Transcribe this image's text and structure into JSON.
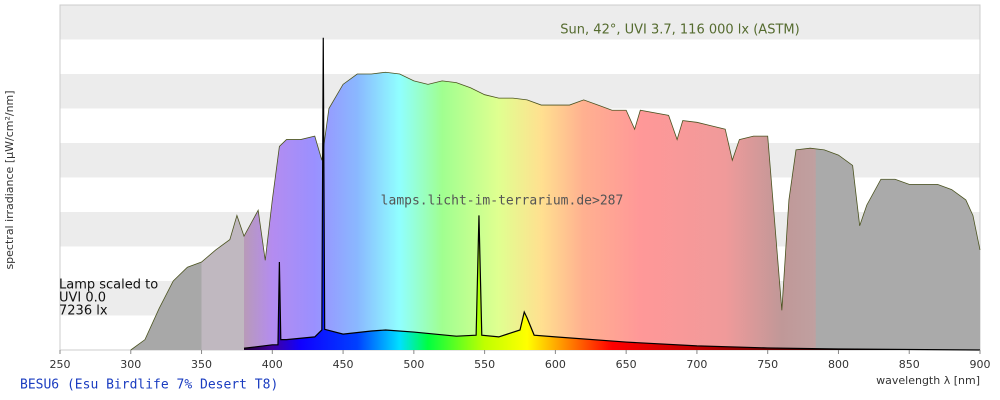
{
  "chart_data": {
    "type": "area",
    "title": "Sun, 42°, UVI 3.7, 116 000 lx (ASTM)",
    "watermark": "lamps.licht-im-terrarium.de>287",
    "annotation": [
      "Lamp scaled to",
      "UVI 0.0",
      "7236 lx"
    ],
    "y_label": "spectral irradiance [µW/cm²/nm]",
    "x_label": "wavelength λ [nm]",
    "caption": "BESU6 (Esu Birdlife 7% Desert T8)",
    "xlim": [
      250,
      900
    ],
    "ylim": [
      0,
      10
    ],
    "xticks": [
      250,
      300,
      350,
      400,
      450,
      500,
      550,
      600,
      650,
      700,
      750,
      800,
      850,
      900
    ],
    "series": [
      {
        "name": "Sun",
        "color": "#4b5320",
        "x": [
          300,
          310,
          320,
          330,
          340,
          350,
          360,
          370,
          375,
          380,
          390,
          395,
          400,
          405,
          410,
          420,
          430,
          435,
          440,
          450,
          460,
          470,
          480,
          490,
          500,
          510,
          520,
          530,
          540,
          550,
          560,
          570,
          580,
          590,
          600,
          610,
          620,
          630,
          640,
          650,
          656,
          660,
          680,
          686,
          690,
          700,
          710,
          720,
          725,
          730,
          740,
          750,
          760,
          765,
          770,
          780,
          790,
          800,
          810,
          815,
          820,
          830,
          840,
          850,
          860,
          870,
          880,
          890,
          895,
          900
        ],
        "values": [
          0,
          0.3,
          1.2,
          2.0,
          2.4,
          2.55,
          2.9,
          3.2,
          3.9,
          3.3,
          4.05,
          2.6,
          4.35,
          5.9,
          6.1,
          6.1,
          6.2,
          5.5,
          7.0,
          7.7,
          8.0,
          8.0,
          8.05,
          8.0,
          7.8,
          7.7,
          7.8,
          7.75,
          7.6,
          7.4,
          7.3,
          7.3,
          7.25,
          7.1,
          7.1,
          7.1,
          7.25,
          7.1,
          6.95,
          6.95,
          6.4,
          6.95,
          6.8,
          6.1,
          6.65,
          6.6,
          6.5,
          6.4,
          5.5,
          6.1,
          6.2,
          6.2,
          1.15,
          4.35,
          5.8,
          5.85,
          5.8,
          5.65,
          5.35,
          3.6,
          4.2,
          4.95,
          4.95,
          4.8,
          4.8,
          4.8,
          4.65,
          4.35,
          3.9,
          2.9
        ]
      },
      {
        "name": "Lamp",
        "color": "#000000",
        "x": [
          380,
          400,
          404,
          405,
          406,
          410,
          430,
          435,
          436,
          437,
          450,
          470,
          480,
          500,
          530,
          544,
          546,
          548,
          560,
          575,
          578,
          580,
          585,
          600,
          650,
          700,
          750,
          800,
          900
        ],
        "values": [
          0.05,
          0.15,
          0.15,
          2.55,
          0.3,
          0.3,
          0.38,
          0.58,
          9.05,
          0.6,
          0.46,
          0.55,
          0.58,
          0.52,
          0.4,
          0.43,
          3.9,
          0.43,
          0.38,
          0.58,
          1.1,
          0.93,
          0.43,
          0.38,
          0.23,
          0.12,
          0.06,
          0.03,
          0
        ]
      }
    ]
  }
}
